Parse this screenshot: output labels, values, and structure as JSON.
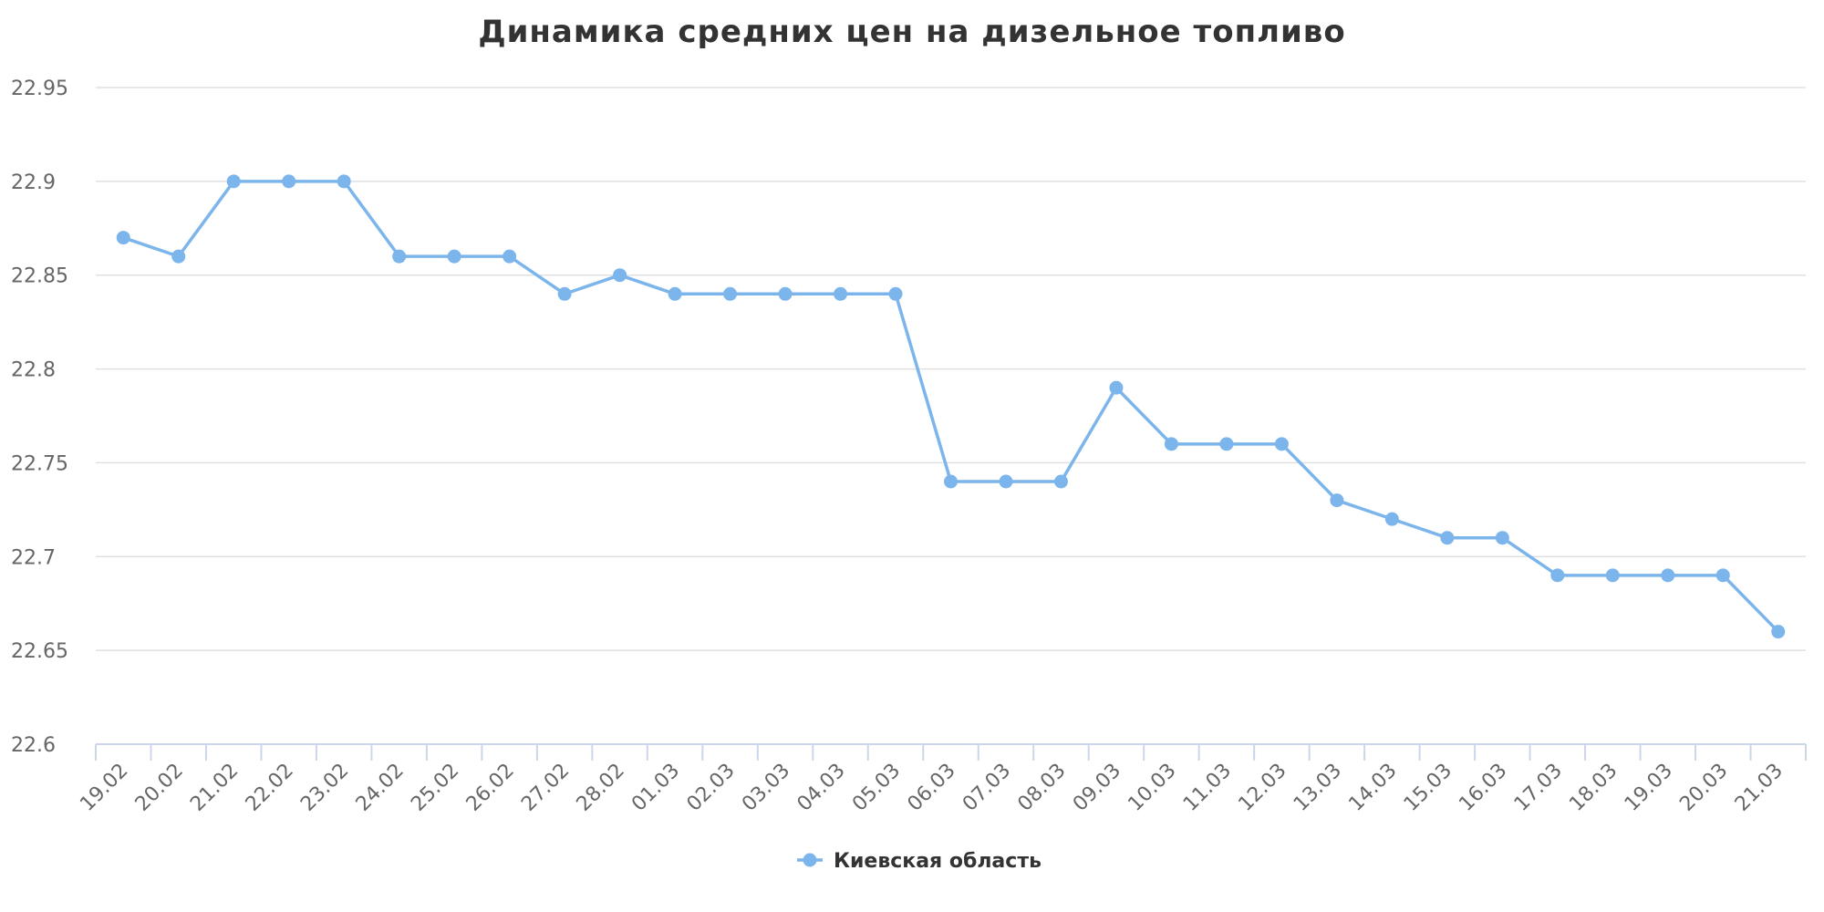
{
  "chart_data": {
    "type": "line",
    "title": "Динамика средних цен на дизельное топливо",
    "xlabel": "",
    "ylabel": "",
    "ylim": [
      22.6,
      22.95
    ],
    "y_ticks": [
      "22.6",
      "22.65",
      "22.7",
      "22.75",
      "22.8",
      "22.85",
      "22.9",
      "22.95"
    ],
    "y_tick_values": [
      22.6,
      22.65,
      22.7,
      22.75,
      22.8,
      22.85,
      22.9,
      22.95
    ],
    "grid": true,
    "legend_position": "bottom-center",
    "categories": [
      "19.02",
      "20.02",
      "21.02",
      "22.02",
      "23.02",
      "24.02",
      "25.02",
      "26.02",
      "27.02",
      "28.02",
      "01.03",
      "02.03",
      "03.03",
      "04.03",
      "05.03",
      "06.03",
      "07.03",
      "08.03",
      "09.03",
      "10.03",
      "11.03",
      "12.03",
      "13.03",
      "14.03",
      "15.03",
      "16.03",
      "17.03",
      "18.03",
      "19.03",
      "20.03",
      "21.03"
    ],
    "series": [
      {
        "name": "Киевская область",
        "color": "#7cb5ec",
        "values": [
          22.87,
          22.86,
          22.9,
          22.9,
          22.9,
          22.86,
          22.86,
          22.86,
          22.84,
          22.85,
          22.84,
          22.84,
          22.84,
          22.84,
          22.84,
          22.74,
          22.74,
          22.74,
          22.79,
          22.76,
          22.76,
          22.76,
          22.73,
          22.72,
          22.71,
          22.71,
          22.69,
          22.69,
          22.69,
          22.69,
          22.66
        ]
      }
    ]
  }
}
